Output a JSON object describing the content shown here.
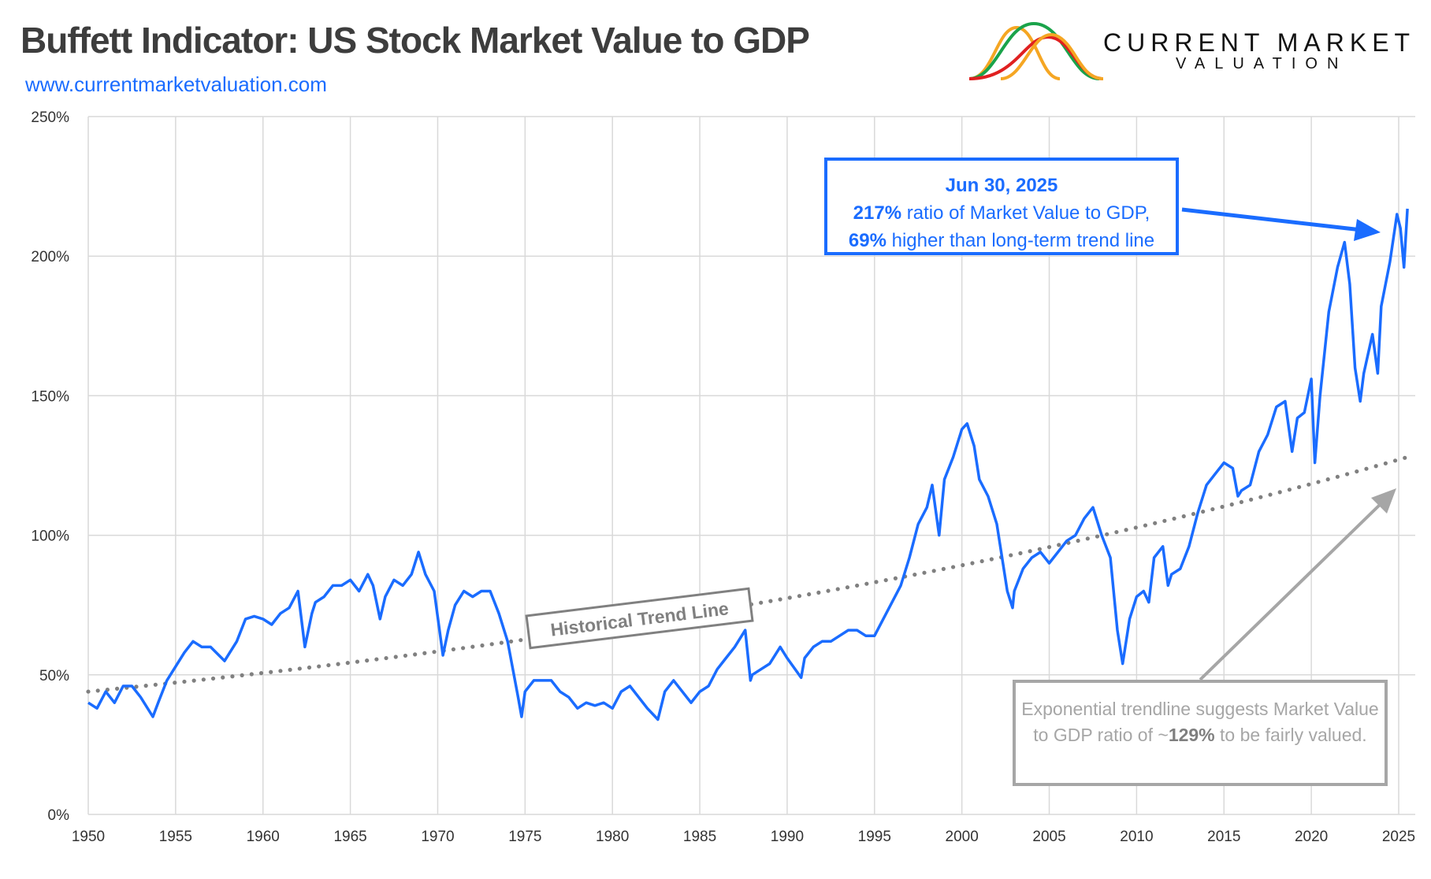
{
  "header": {
    "title": "Buffett Indicator: US Stock Market Value to GDP",
    "url": "www.currentmarketvaluation.com",
    "logo_line1": "CURRENT MARKET",
    "logo_line2": "VALUATION"
  },
  "colors": {
    "series": "#1a6cff",
    "trend": "#808080",
    "grid": "#d9d9d9",
    "title": "#3d3d3d",
    "logo": [
      "#f5a623",
      "#1aa34a",
      "#e02020"
    ]
  },
  "annotations": {
    "callout": {
      "date": "Jun 30, 2025",
      "pct": "217%",
      "line1_rest": " ratio of Market Value to GDP,",
      "pct2": "69%",
      "line2_rest": " higher than long-term trend line"
    },
    "trend_label": "Historical Trend Line",
    "fair": {
      "part1": "Exponential trendline suggests Market Value to GDP ratio of ~",
      "pct": "129%",
      "part2": " to be fairly valued."
    }
  },
  "chart_data": {
    "type": "line",
    "title": "Buffett Indicator: US Stock Market Value to GDP",
    "xlim": [
      1950,
      2025.6
    ],
    "ylim": [
      0,
      250
    ],
    "grid": true,
    "x_ticks": [
      "1950",
      "1955",
      "1960",
      "1965",
      "1970",
      "1975",
      "1980",
      "1985",
      "1990",
      "1995",
      "2000",
      "2005",
      "2010",
      "2015",
      "2020",
      "2025"
    ],
    "y_ticks": [
      "0%",
      "50%",
      "100%",
      "150%",
      "200%",
      "250%"
    ],
    "y_tick_values": [
      0,
      50,
      100,
      150,
      200,
      250
    ],
    "series": [
      {
        "x": [
          1950,
          1950.5,
          1951,
          1951.5,
          1952,
          1952.5,
          1953,
          1953.7,
          1954,
          1954.5,
          1955,
          1955.5,
          1956,
          1956.5,
          1957,
          1957.8,
          1958.5,
          1959,
          1959.5,
          1960,
          1960.5,
          1961,
          1961.5,
          1962,
          1962.4,
          1962.8,
          1963,
          1963.5,
          1964,
          1964.5,
          1965,
          1965.5,
          1966,
          1966.3,
          1966.7,
          1967,
          1967.5,
          1968,
          1968.5,
          1968.9,
          1969.3,
          1969.8,
          1970.3,
          1970.6,
          1971,
          1971.5,
          1972,
          1972.5,
          1973,
          1973.5,
          1974,
          1974.6,
          1974.8,
          1975,
          1975.5,
          1976,
          1976.5,
          1977,
          1977.5,
          1978,
          1978.5,
          1979,
          1979.5,
          1980,
          1980.5,
          1981,
          1981.5,
          1982,
          1982.6,
          1983,
          1983.5,
          1984,
          1984.5,
          1985,
          1985.5,
          1986,
          1986.5,
          1987,
          1987.6,
          1987.9,
          1988,
          1988.5,
          1989,
          1989.6,
          1990,
          1990.8,
          1991,
          1991.5,
          1992,
          1992.5,
          1993,
          1993.5,
          1994,
          1994.5,
          1995,
          1995.5,
          1996,
          1996.5,
          1997,
          1997.5,
          1998,
          1998.3,
          1998.7,
          1999,
          1999.5,
          2000,
          2000.3,
          2000.7,
          2001,
          2001.5,
          2002,
          2002.6,
          2002.9,
          2003,
          2003.5,
          2004,
          2004.5,
          2005,
          2005.5,
          2006,
          2006.5,
          2007,
          2007.5,
          2008,
          2008.5,
          2008.9,
          2009.2,
          2009.6,
          2010,
          2010.4,
          2010.7,
          2011,
          2011.5,
          2011.8,
          2012,
          2012.5,
          2013,
          2013.5,
          2014,
          2014.5,
          2015,
          2015.5,
          2015.8,
          2016,
          2016.5,
          2017,
          2017.5,
          2018,
          2018.5,
          2018.9,
          2019.2,
          2019.6,
          2020,
          2020.2,
          2020.5,
          2021,
          2021.5,
          2021.9,
          2022.2,
          2022.5,
          2022.8,
          2023,
          2023.5,
          2023.8,
          2024,
          2024.5,
          2024.9,
          2025.1,
          2025.3,
          2025.5
        ],
        "y": [
          40,
          38,
          44,
          40,
          46,
          46,
          42,
          35,
          40,
          48,
          53,
          58,
          62,
          60,
          60,
          55,
          62,
          70,
          71,
          70,
          68,
          72,
          74,
          80,
          60,
          72,
          76,
          78,
          82,
          82,
          84,
          80,
          86,
          82,
          70,
          78,
          84,
          82,
          86,
          94,
          86,
          80,
          57,
          66,
          75,
          80,
          78,
          80,
          80,
          72,
          62,
          42,
          35,
          44,
          48,
          48,
          48,
          44,
          42,
          38,
          40,
          39,
          40,
          38,
          44,
          46,
          42,
          38,
          34,
          44,
          48,
          44,
          40,
          44,
          46,
          52,
          56,
          60,
          66,
          48,
          50,
          52,
          54,
          60,
          56,
          49,
          56,
          60,
          62,
          62,
          64,
          66,
          66,
          64,
          64,
          70,
          76,
          82,
          92,
          104,
          110,
          118,
          100,
          120,
          128,
          138,
          140,
          132,
          120,
          114,
          104,
          80,
          74,
          80,
          88,
          92,
          94,
          90,
          94,
          98,
          100,
          106,
          110,
          100,
          92,
          66,
          54,
          70,
          78,
          80,
          76,
          92,
          96,
          82,
          86,
          88,
          96,
          108,
          118,
          122,
          126,
          124,
          114,
          116,
          118,
          130,
          136,
          146,
          148,
          130,
          142,
          144,
          156,
          126,
          150,
          180,
          196,
          205,
          190,
          160,
          148,
          158,
          172,
          158,
          182,
          198,
          215,
          210,
          196,
          217
        ]
      }
    ],
    "trendline": {
      "type": "exponential",
      "start": [
        1950,
        44
      ],
      "end": [
        2025.5,
        128
      ]
    }
  }
}
